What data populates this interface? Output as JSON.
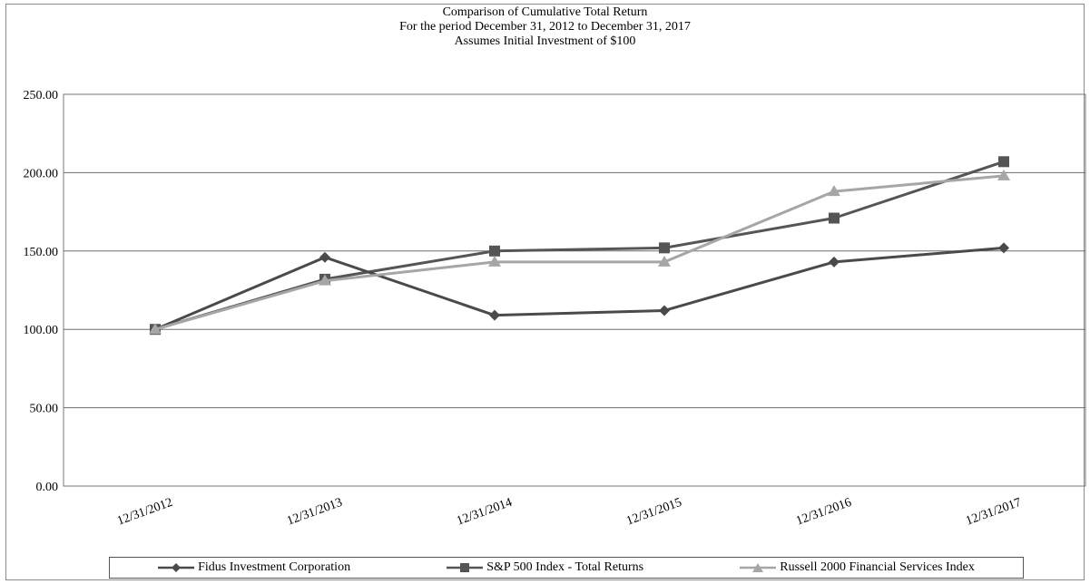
{
  "chart_data": {
    "type": "line",
    "title_lines": [
      "Comparison of Cumulative Total Return",
      "For the period December 31, 2012 to December 31, 2017",
      "Assumes Initial Investment  of $100"
    ],
    "categories": [
      "12/31/2012",
      "12/31/2013",
      "12/31/2014",
      "12/31/2015",
      "12/31/2016",
      "12/31/2017"
    ],
    "yticks": [
      "0.00",
      "50.00",
      "100.00",
      "150.00",
      "200.00",
      "250.00"
    ],
    "ylim": [
      0,
      250
    ],
    "grid": true,
    "legend_position": "bottom",
    "series": [
      {
        "name": "Fidus Investment Corporation",
        "marker": "diamond",
        "color": "#4a4a4a",
        "values": [
          100,
          146,
          109,
          112,
          143,
          152
        ]
      },
      {
        "name": "S&P 500 Index - Total Returns",
        "marker": "square",
        "color": "#555555",
        "values": [
          100,
          132,
          150,
          152,
          171,
          207
        ]
      },
      {
        "name": "Russell 2000 Financial Services Index",
        "marker": "triangle",
        "color": "#a6a6a6",
        "values": [
          100,
          131,
          143,
          143,
          188,
          198
        ]
      }
    ]
  }
}
